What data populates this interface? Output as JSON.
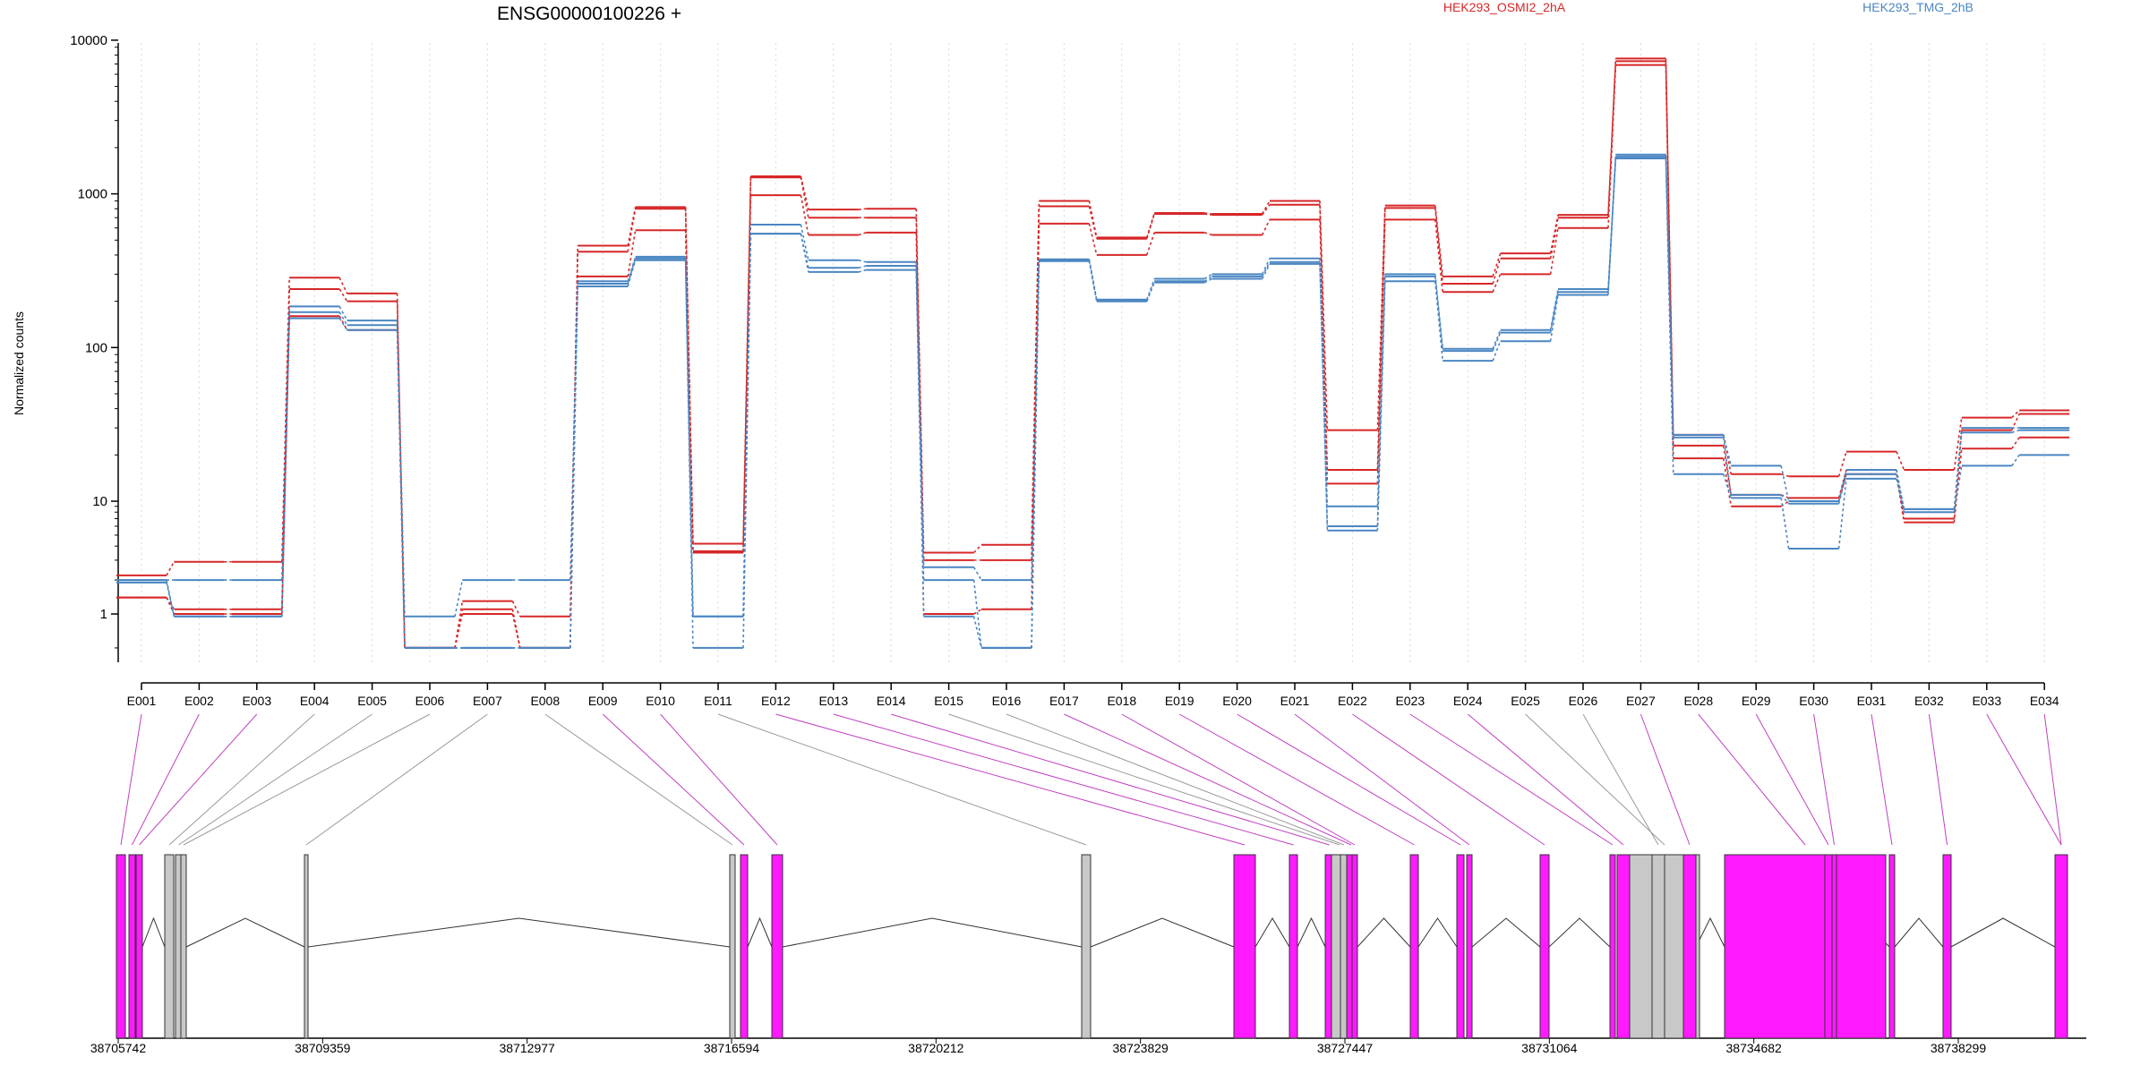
{
  "chart_data": {
    "type": "line",
    "title": "ENSG00000100226 +",
    "ylabel": "Normalized counts",
    "xlabel": "",
    "y_scale": "log",
    "ylim": [
      0.5,
      10000
    ],
    "y_ticks": [
      1,
      10,
      100,
      1000,
      10000
    ],
    "y_tick_labels": [
      "1",
      "10",
      "100",
      "1000",
      "10000"
    ],
    "grid": "vertical dotted lines at exon bins",
    "legend": [
      "HEK293_OSMI2_2hA",
      "HEK293_TMG_2hB"
    ],
    "legend_placement": "top-right",
    "colors": {
      "HEK293_OSMI2_2hA": "#d62728",
      "HEK293_TMG_2hB": "#4a86c2",
      "exon_tested": "#ff1aff",
      "exon_untested": "#c8c8c8"
    },
    "categories": [
      "E001",
      "E002",
      "E003",
      "E004",
      "E005",
      "E006",
      "E007",
      "E008",
      "E009",
      "E010",
      "E011",
      "E012",
      "E013",
      "E014",
      "E015",
      "E016",
      "E017",
      "E018",
      "E019",
      "E020",
      "E021",
      "E022",
      "E023",
      "E024",
      "E025",
      "E026",
      "E027",
      "E028",
      "E029",
      "E030",
      "E031",
      "E032",
      "E033",
      "E034"
    ],
    "series": [
      {
        "name": "HEK293_OSMI2_2hA",
        "group": "HEK293_OSMI2_2hA",
        "values": [
          2.2,
          2.9,
          2.9,
          285,
          225,
          0.5,
          1.3,
          0.95,
          460,
          820,
          4.2,
          1300,
          790,
          800,
          3.5,
          4.1,
          900,
          520,
          750,
          740,
          900,
          29,
          840,
          290,
          410,
          730,
          7600,
          27,
          15,
          14.5,
          21,
          16,
          35,
          39
        ]
      },
      {
        "group": "HEK293_OSMI2_2hA",
        "values": [
          1.4,
          1.1,
          1.1,
          240,
          200,
          0.5,
          1.1,
          0.5,
          420,
          800,
          3.6,
          1280,
          700,
          700,
          3.0,
          3.0,
          830,
          510,
          740,
          730,
          850,
          16,
          810,
          260,
          380,
          700,
          7300,
          23,
          11,
          10.5,
          16,
          7.0,
          29,
          37
        ]
      },
      {
        "group": "HEK293_OSMI2_2hA",
        "values": [
          1.4,
          1.0,
          1.0,
          160,
          130,
          0.5,
          1.0,
          0.5,
          290,
          580,
          3.5,
          980,
          540,
          560,
          1.0,
          1.1,
          640,
          400,
          560,
          540,
          680,
          13,
          680,
          230,
          300,
          600,
          6900,
          19,
          9.0,
          10.0,
          15,
          6.5,
          22,
          26
        ]
      },
      {
        "name": "HEK293_TMG_2hB",
        "group": "HEK293_TMG_2hB",
        "values": [
          2.0,
          2.0,
          2.0,
          185,
          150,
          0.95,
          2.0,
          2.0,
          270,
          390,
          0.95,
          630,
          370,
          360,
          2.6,
          2.0,
          375,
          205,
          280,
          300,
          380,
          9.0,
          300,
          98,
          130,
          240,
          1800,
          27,
          17,
          10.0,
          16,
          8.5,
          30,
          30
        ]
      },
      {
        "group": "HEK293_TMG_2hB",
        "values": [
          2.0,
          0.95,
          0.95,
          170,
          140,
          0.5,
          0.5,
          0.5,
          260,
          380,
          0.95,
          550,
          330,
          340,
          2.0,
          0.5,
          370,
          200,
          270,
          290,
          360,
          6.0,
          290,
          95,
          125,
          230,
          1750,
          26,
          11,
          9.5,
          15,
          8.5,
          28,
          29
        ]
      },
      {
        "group": "HEK293_TMG_2hB",
        "values": [
          1.9,
          0.95,
          0.95,
          155,
          130,
          0.5,
          0.5,
          0.5,
          250,
          370,
          0.5,
          550,
          310,
          320,
          0.95,
          0.5,
          365,
          200,
          265,
          280,
          350,
          5.5,
          270,
          82,
          110,
          220,
          1700,
          15,
          10.5,
          3.8,
          14,
          8.0,
          17,
          20
        ]
      }
    ],
    "gene_model": {
      "coordinate_labels": [
        "38705742",
        "38709359",
        "38712977",
        "38716594",
        "38720212",
        "38723829",
        "38727447",
        "38731064",
        "38734682",
        "38738299"
      ],
      "exon_tested": [
        true,
        true,
        true,
        false,
        false,
        false,
        false,
        false,
        true,
        true,
        false,
        true,
        true,
        true,
        false,
        false,
        true,
        true,
        true,
        true,
        true,
        true,
        true,
        true,
        false,
        false,
        true,
        true,
        true,
        true,
        true,
        true,
        true,
        true
      ]
    }
  }
}
